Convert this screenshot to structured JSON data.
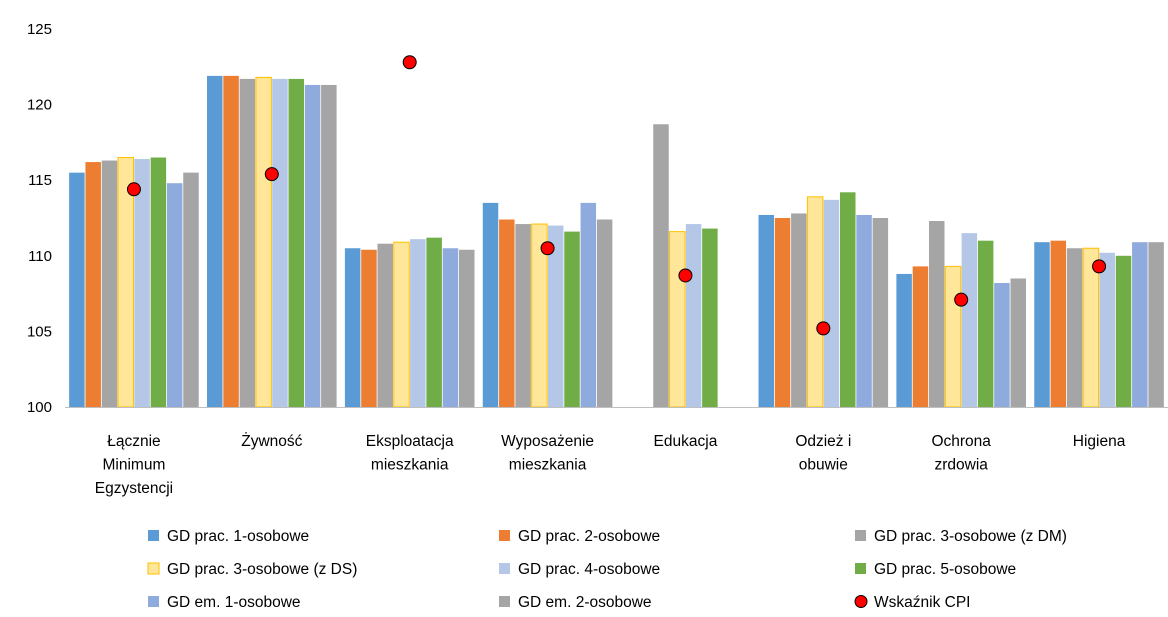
{
  "chart_data": {
    "type": "bar",
    "ylim": [
      100,
      125
    ],
    "yticks": [
      100,
      105,
      110,
      115,
      120,
      125
    ],
    "categories": [
      [
        "Łącznie",
        "Minimum",
        "Egzystencji"
      ],
      [
        "Żywność"
      ],
      [
        "Eksploatacja",
        "mieszkania"
      ],
      [
        "Wyposażenie",
        "mieszkania"
      ],
      [
        "Edukacja"
      ],
      [
        "Odzież i",
        "obuwie"
      ],
      [
        "Ochrona",
        "zrdowia"
      ],
      [
        "Higiena"
      ]
    ],
    "series": [
      {
        "name": "GD prac. 1-osobowe",
        "color": "#5B9BD5",
        "values": [
          115.5,
          121.9,
          110.5,
          113.5,
          null,
          112.7,
          108.8,
          110.9
        ]
      },
      {
        "name": "GD prac. 2-osobowe",
        "color": "#ED7D31",
        "values": [
          116.2,
          121.9,
          110.4,
          112.4,
          null,
          112.5,
          109.3,
          111.0
        ]
      },
      {
        "name": "GD prac. 3-osobowe (z DM)",
        "color": "#A5A5A5",
        "values": [
          116.3,
          121.7,
          110.8,
          112.1,
          118.7,
          112.8,
          112.3,
          110.5
        ]
      },
      {
        "name": "GD prac. 3-osobowe (z DS)",
        "color": "#FFE699",
        "border": "#FFC000",
        "values": [
          116.5,
          121.8,
          110.9,
          112.1,
          111.6,
          113.9,
          109.3,
          110.5
        ]
      },
      {
        "name": "GD prac. 4-osobowe",
        "color": "#B4C7E7",
        "values": [
          116.4,
          121.7,
          111.1,
          112.0,
          112.1,
          113.7,
          111.5,
          110.2
        ]
      },
      {
        "name": "GD prac. 5-osobowe",
        "color": "#70AD47",
        "values": [
          116.5,
          121.7,
          111.2,
          111.6,
          111.8,
          114.2,
          111.0,
          110.0
        ]
      },
      {
        "name": "GD em. 1-osobowe",
        "color": "#8FAADC",
        "values": [
          114.8,
          121.3,
          110.5,
          113.5,
          null,
          112.7,
          108.2,
          110.9
        ]
      },
      {
        "name": "GD em. 2-osobowe",
        "color": "#A5A5A5",
        "values": [
          115.5,
          121.3,
          110.4,
          112.4,
          null,
          112.5,
          108.5,
          110.9
        ]
      }
    ],
    "markers": {
      "name": "Wskaźnik CPI",
      "color": "#FF0000",
      "values": [
        114.4,
        115.4,
        122.8,
        110.5,
        108.7,
        105.2,
        107.1,
        109.3
      ]
    },
    "legend_position": "bottom"
  }
}
